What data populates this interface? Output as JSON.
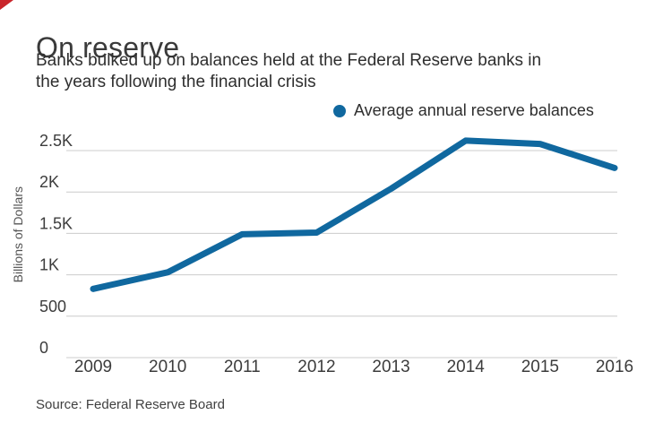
{
  "chart_data": {
    "type": "line",
    "title": "On reserve",
    "subtitle": "Banks bulked up on balances held at the Federal Reserve banks in the years following the financial crisis",
    "categories": [
      "2009",
      "2010",
      "2011",
      "2012",
      "2013",
      "2014",
      "2015",
      "2016"
    ],
    "series": [
      {
        "name": "Average annual reserve balances",
        "values": [
          830,
          1030,
          1490,
          1510,
          2040,
          2620,
          2580,
          2290
        ]
      }
    ],
    "xlabel": "",
    "ylabel": "Billions of Dollars",
    "ylim": [
      0,
      2500
    ],
    "yticks": [
      0,
      500,
      1000,
      1500,
      2000,
      2500
    ],
    "ytick_labels": [
      "0",
      "500",
      "1K",
      "1.5K",
      "2K",
      "2.5K"
    ],
    "grid": true,
    "legend_position": "top-right",
    "line_color": "#10689f",
    "grid_color": "#cccccc",
    "marker": "dot"
  },
  "footer": {
    "source": "Source: Federal Reserve Board"
  }
}
